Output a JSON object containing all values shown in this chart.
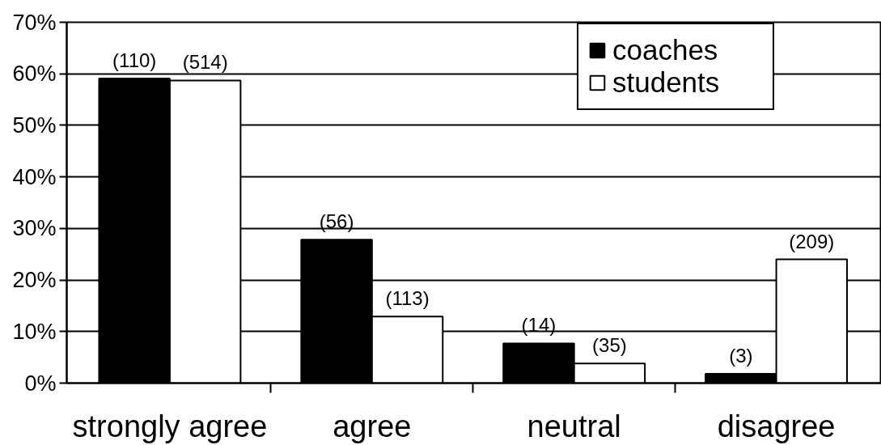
{
  "chart_data": {
    "type": "bar",
    "categories": [
      "strongly agree",
      "agree",
      "neutral",
      "disagree"
    ],
    "series": [
      {
        "name": "coaches",
        "color": "#000000",
        "values": [
          59.1,
          27.8,
          7.7,
          1.8
        ]
      },
      {
        "name": "students",
        "color": "#ffffff",
        "values": [
          58.7,
          12.9,
          3.8,
          24.0
        ]
      }
    ],
    "annotations": [
      {
        "text": "(110)",
        "x": "strongly agree",
        "y": 59.1
      },
      {
        "text": "(514)",
        "x": "strongly agree",
        "y": 58.7
      },
      {
        "text": "(56)",
        "x": "agree",
        "y": 27.8
      },
      {
        "text": "(113)",
        "x": "agree",
        "y": 12.9
      },
      {
        "text": "(14)",
        "x": "neutral",
        "y": 7.7
      },
      {
        "text": "(35)",
        "x": "neutral",
        "y": 3.8
      },
      {
        "text": "(3)",
        "x": "disagree",
        "y": 1.8
      },
      {
        "text": "(209)",
        "x": "disagree",
        "y": 24.0
      }
    ],
    "ylim": [
      0,
      70
    ],
    "yticks": [
      {
        "value": 0,
        "label": "0%"
      },
      {
        "value": 10,
        "label": "10%"
      },
      {
        "value": 20,
        "label": "20%"
      },
      {
        "value": 30,
        "label": "30%"
      },
      {
        "value": 40,
        "label": "40%"
      },
      {
        "value": 50,
        "label": "50%"
      },
      {
        "value": 60,
        "label": "60%"
      },
      {
        "value": 70,
        "label": "70%"
      }
    ],
    "grid": "y",
    "legend": "top right"
  }
}
